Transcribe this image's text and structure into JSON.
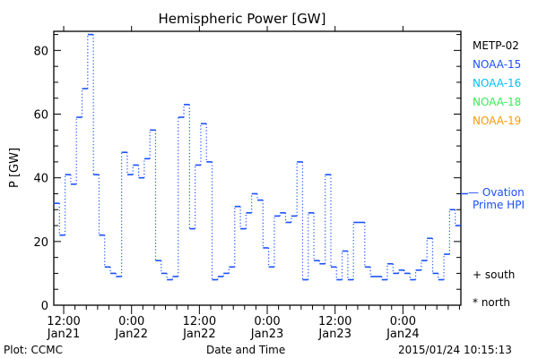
{
  "chart_data": {
    "type": "line",
    "style": "step",
    "title": "Hemispheric Power [GW]",
    "xlabel": "Date and Time",
    "ylabel": "P [GW]",
    "ylim": [
      0,
      86
    ],
    "yticks": [
      0,
      20,
      40,
      60,
      80
    ],
    "x_unit": "hours since 2015-01-21 12:00",
    "xlim": [
      -1.75,
      70.25
    ],
    "xticks": [
      {
        "hour": 0,
        "label1": "12:00",
        "label2": "Jan21"
      },
      {
        "hour": 12,
        "label1": "0:00",
        "label2": "Jan22"
      },
      {
        "hour": 24,
        "label1": "12:00",
        "label2": "Jan22"
      },
      {
        "hour": 36,
        "label1": "0:00",
        "label2": "Jan23"
      },
      {
        "hour": 48,
        "label1": "12:00",
        "label2": "Jan23"
      },
      {
        "hour": 60,
        "label1": "0:00",
        "label2": "Jan24"
      }
    ],
    "series": [
      {
        "name": "Ovation Prime HPI",
        "color": "#1a50ff",
        "start_hour": -1.75,
        "step_hours": 1,
        "values": [
          32,
          22,
          41,
          38,
          59,
          68,
          85,
          41,
          22,
          12,
          10,
          9,
          48,
          41,
          44,
          40,
          46,
          55,
          14,
          10,
          8,
          9,
          59,
          63,
          24,
          44,
          57,
          45,
          8,
          9,
          10,
          12,
          31,
          24,
          29,
          35,
          33,
          18,
          12,
          28,
          29,
          26,
          28,
          45,
          8,
          29,
          14,
          13,
          41,
          12,
          8,
          17,
          8,
          26,
          26,
          12,
          9,
          9,
          8,
          13,
          10,
          11,
          10,
          8,
          11,
          14,
          21,
          10,
          8,
          16,
          30,
          25
        ]
      }
    ],
    "ovation_marker_value": 35,
    "legend": [
      {
        "label": "METP-02",
        "color": "#000000"
      },
      {
        "label": "NOAA-15",
        "color": "#1a50ff"
      },
      {
        "label": "NOAA-16",
        "color": "#00bfff"
      },
      {
        "label": "NOAA-18",
        "color": "#33ee55"
      },
      {
        "label": "NOAA-19",
        "color": "#ff9900"
      }
    ],
    "ovation_label_1": "— Ovation",
    "ovation_label_2": "Prime HPI",
    "south_label": "+ south",
    "north_label": "* north"
  },
  "footer": {
    "plot_credit": "Plot: CCMC",
    "timestamp": "2015/01/24 10:15:13"
  }
}
